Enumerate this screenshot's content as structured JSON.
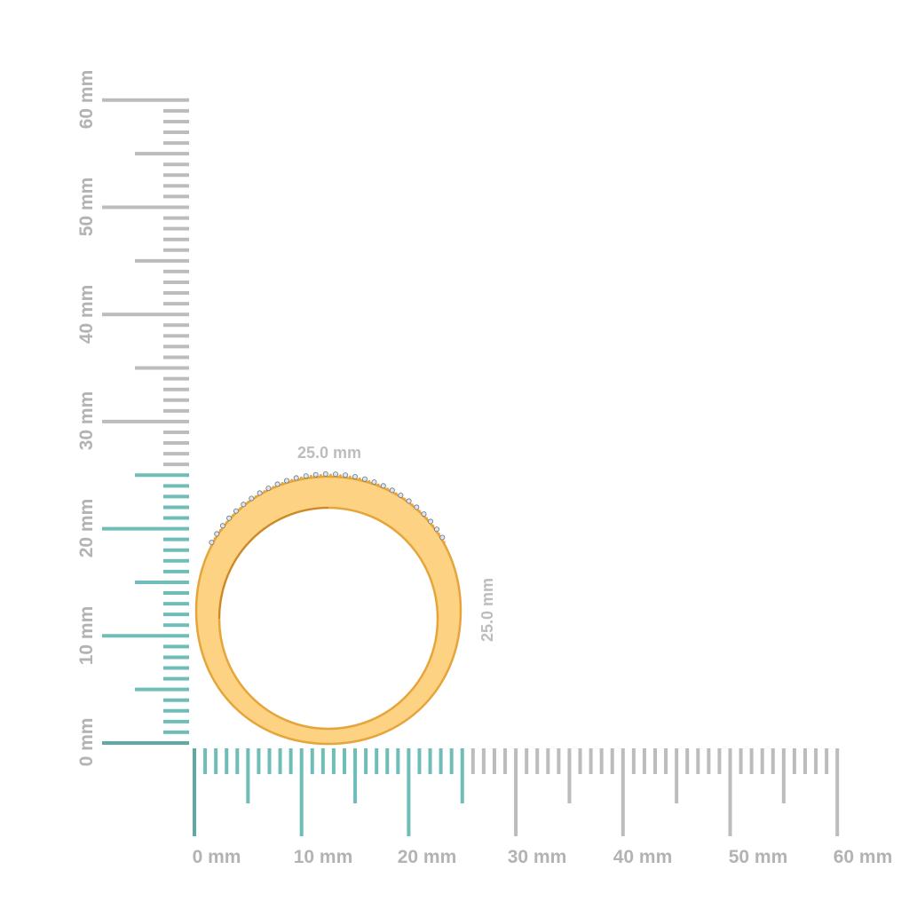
{
  "rulers": {
    "unit": "mm",
    "vertical_labels": [
      "0 mm",
      "10 mm",
      "20 mm",
      "30 mm",
      "40 mm",
      "50 mm",
      "60 mm"
    ],
    "horizontal_labels": [
      "0 mm",
      "10 mm",
      "20 mm",
      "30 mm",
      "40 mm",
      "50 mm",
      "60 mm"
    ],
    "range_mm": [
      0,
      60
    ],
    "highlighted_up_to_mm": 25,
    "highlight_color": "#6fbdb8",
    "base_color": "#bcbcbc"
  },
  "product": {
    "width_label": "25.0 mm",
    "height_label": "25.0 mm",
    "metal_color": "#fdd283",
    "rim_color": "#e6a53a"
  }
}
